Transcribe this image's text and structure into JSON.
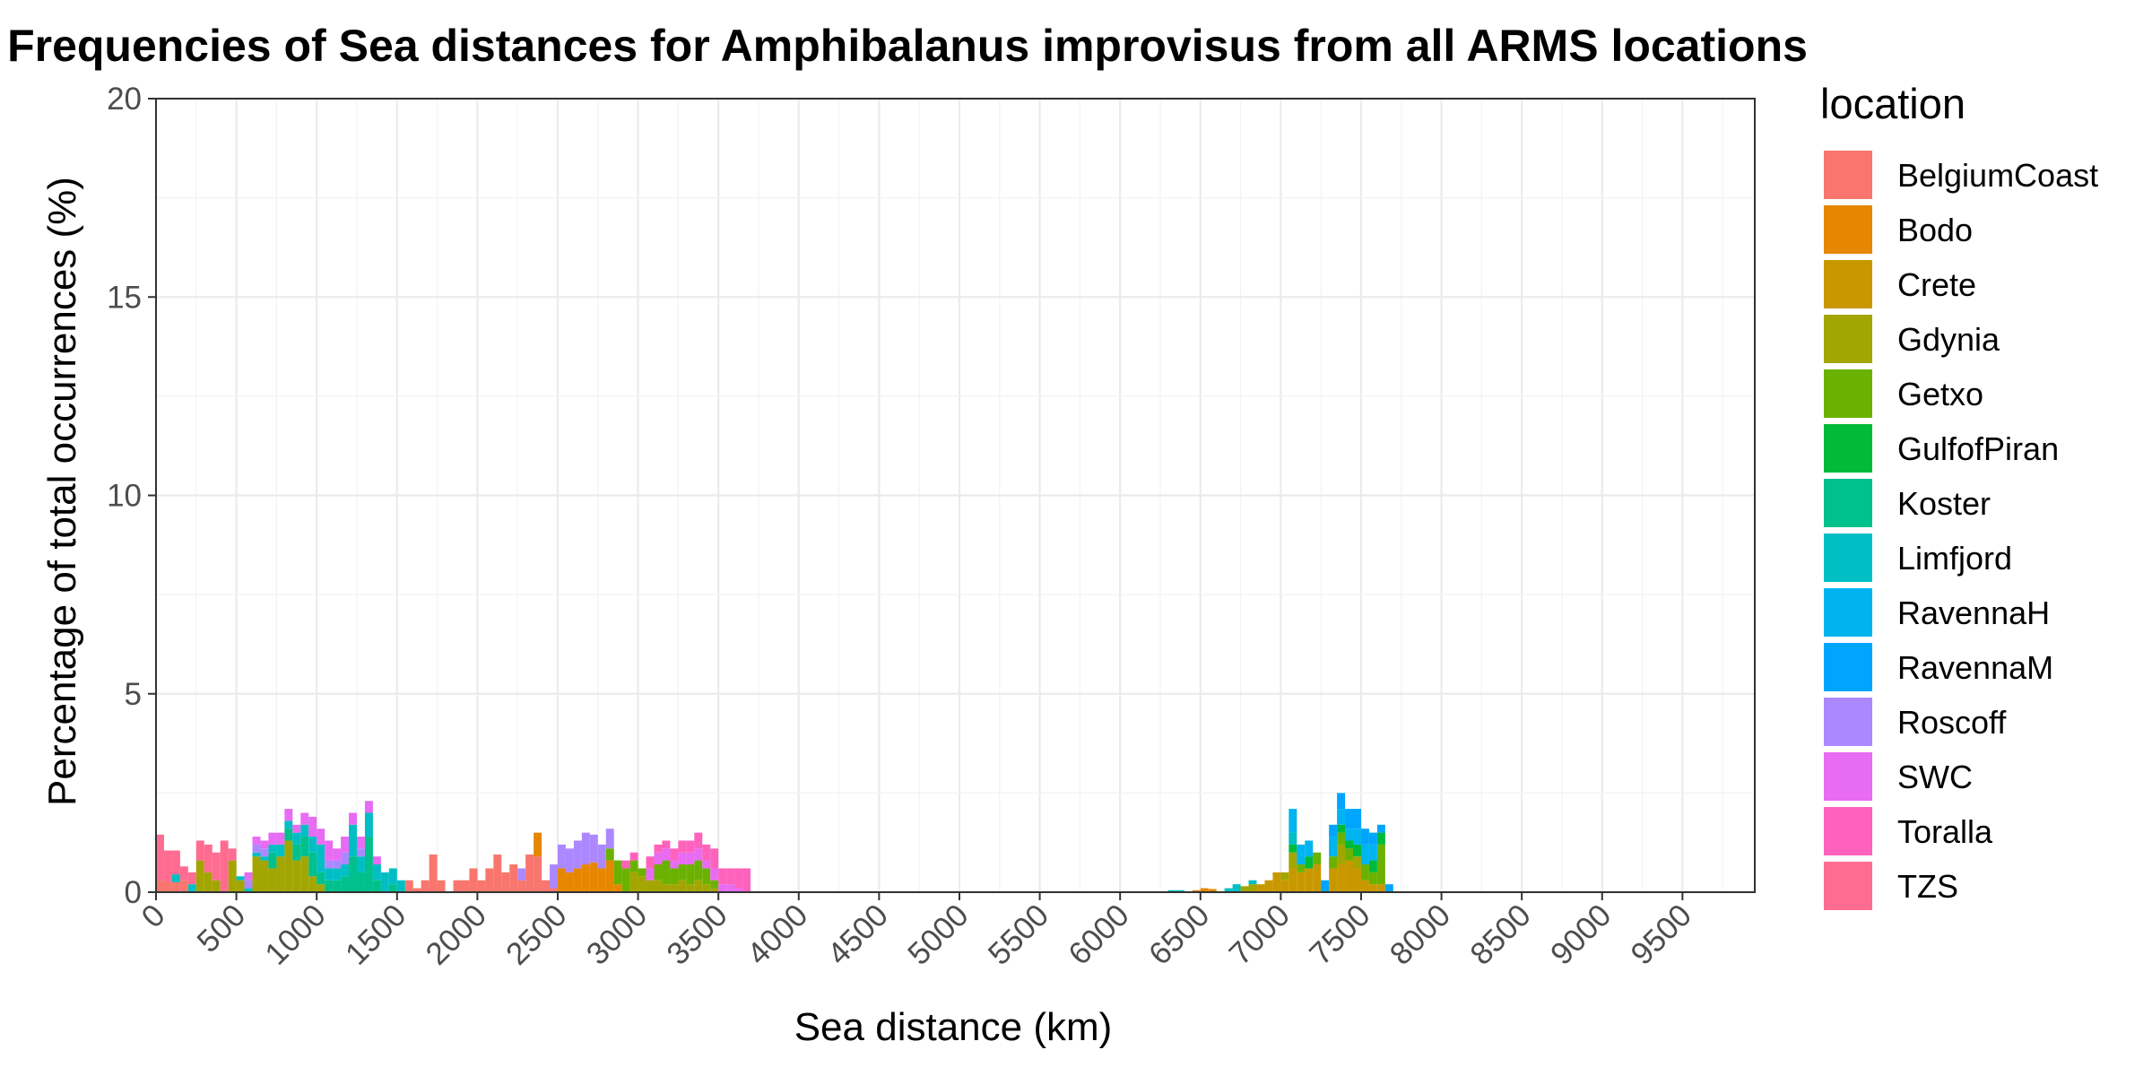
{
  "chart_data": {
    "type": "bar",
    "stacked": true,
    "title": "Frequencies of Sea distances for Amphibalanus improvisus from all ARMS locations",
    "xlabel": "Sea distance (km)",
    "ylabel": "Percentage of total occurrences (%)",
    "xlim": [
      0,
      9950
    ],
    "ylim": [
      0,
      20
    ],
    "bin_width": 50,
    "x_ticks": [
      0,
      500,
      1000,
      1500,
      2000,
      2500,
      3000,
      3500,
      4000,
      4500,
      5000,
      5500,
      6000,
      6500,
      7000,
      7500,
      8000,
      8500,
      9000,
      9500
    ],
    "y_ticks": [
      0,
      5,
      10,
      15,
      20
    ],
    "grid": true,
    "legend": {
      "title": "location",
      "position": "right"
    },
    "series": [
      {
        "name": "BelgiumCoast",
        "color": "#F8766D",
        "values": [
          [
            25,
            0.3
          ],
          [
            75,
            0.25
          ],
          [
            125,
            0.25
          ],
          [
            175,
            0.3
          ],
          [
            1575,
            0.3
          ],
          [
            1625,
            0.1
          ],
          [
            1675,
            0.3
          ],
          [
            1725,
            0.95
          ],
          [
            1775,
            0.3
          ],
          [
            1875,
            0.3
          ],
          [
            1925,
            0.3
          ],
          [
            1975,
            0.6
          ],
          [
            2025,
            0.3
          ],
          [
            2075,
            0.6
          ],
          [
            2125,
            0.95
          ],
          [
            2175,
            0.5
          ],
          [
            2225,
            0.7
          ],
          [
            2275,
            0.3
          ],
          [
            2325,
            0.95
          ],
          [
            2375,
            0.9
          ],
          [
            2425,
            0.3
          ],
          [
            2475,
            0.1
          ]
        ]
      },
      {
        "name": "Bodo",
        "color": "#E58700",
        "values": [
          [
            2375,
            0.6
          ],
          [
            2525,
            0.6
          ],
          [
            2575,
            0.5
          ],
          [
            2625,
            0.6
          ],
          [
            2675,
            0.7
          ],
          [
            2725,
            0.75
          ],
          [
            2775,
            0.6
          ],
          [
            2825,
            0.8
          ],
          [
            2875,
            0.2
          ],
          [
            6475,
            0.05
          ],
          [
            6525,
            0.1
          ],
          [
            6575,
            0.08
          ]
        ]
      },
      {
        "name": "Crete",
        "color": "#C99800",
        "values": [
          [
            6875,
            0.2
          ],
          [
            6925,
            0.3
          ],
          [
            6975,
            0.5
          ],
          [
            7025,
            0.3
          ],
          [
            7075,
            0.6
          ],
          [
            7125,
            0.5
          ],
          [
            7175,
            0.6
          ],
          [
            7225,
            0.7
          ],
          [
            7325,
            0.6
          ],
          [
            7375,
            0.7
          ],
          [
            7425,
            0.8
          ],
          [
            7475,
            0.6
          ],
          [
            7525,
            0.3
          ],
          [
            7575,
            0.2
          ],
          [
            7625,
            0.2
          ]
        ]
      },
      {
        "name": "Gdynia",
        "color": "#A3A500",
        "values": [
          [
            275,
            0.8
          ],
          [
            325,
            0.5
          ],
          [
            375,
            0.3
          ],
          [
            475,
            0.8
          ],
          [
            525,
            0.3
          ],
          [
            625,
            0.9
          ],
          [
            675,
            0.8
          ],
          [
            725,
            0.6
          ],
          [
            775,
            0.9
          ],
          [
            825,
            1.3
          ],
          [
            875,
            0.8
          ],
          [
            925,
            0.9
          ],
          [
            975,
            0.4
          ],
          [
            1025,
            0.2
          ],
          [
            2975,
            0.5
          ],
          [
            3025,
            0.4
          ],
          [
            3075,
            0.3
          ],
          [
            3125,
            0.3
          ],
          [
            3175,
            0.2
          ],
          [
            3225,
            0.2
          ],
          [
            3275,
            0.3
          ],
          [
            3325,
            0.2
          ],
          [
            3375,
            0.3
          ],
          [
            3425,
            0.2
          ],
          [
            3475,
            0.1
          ],
          [
            6775,
            0.15
          ],
          [
            6825,
            0.2
          ],
          [
            7025,
            0.2
          ],
          [
            7075,
            0.4
          ],
          [
            7375,
            0.5
          ],
          [
            7475,
            0.3
          ]
        ]
      },
      {
        "name": "Getxo",
        "color": "#6BB100",
        "values": [
          [
            2825,
            0.3
          ],
          [
            2875,
            0.6
          ],
          [
            2925,
            0.6
          ],
          [
            2975,
            0.3
          ],
          [
            3025,
            0.2
          ],
          [
            3125,
            0.4
          ],
          [
            3175,
            0.6
          ],
          [
            3225,
            0.4
          ],
          [
            3275,
            0.4
          ],
          [
            3325,
            0.5
          ],
          [
            3375,
            0.5
          ],
          [
            3425,
            0.4
          ],
          [
            3475,
            0.2
          ],
          [
            7125,
            0.2
          ],
          [
            7225,
            0.3
          ],
          [
            7325,
            0.3
          ],
          [
            7375,
            0.3
          ],
          [
            7425,
            0.3
          ],
          [
            7525,
            0.4
          ],
          [
            7575,
            0.3
          ],
          [
            7625,
            1.0
          ]
        ]
      },
      {
        "name": "GulfofPiran",
        "color": "#00BA38",
        "values": [
          [
            7075,
            0.2
          ],
          [
            7175,
            0.3
          ],
          [
            7375,
            0.2
          ],
          [
            7425,
            0.2
          ],
          [
            7475,
            0.3
          ],
          [
            7575,
            0.3
          ],
          [
            7625,
            0.3
          ]
        ]
      },
      {
        "name": "Koster",
        "color": "#00C08B",
        "values": [
          [
            725,
            0.4
          ],
          [
            825,
            0.3
          ],
          [
            875,
            0.4
          ],
          [
            925,
            0.5
          ],
          [
            975,
            0.6
          ],
          [
            1025,
            0.3
          ],
          [
            1075,
            0.3
          ],
          [
            1125,
            0.3
          ],
          [
            1175,
            0.4
          ],
          [
            1225,
            0.9
          ],
          [
            1275,
            0.5
          ],
          [
            1325,
            1.4
          ],
          [
            1375,
            0.3
          ],
          [
            1475,
            0.2
          ]
        ]
      },
      {
        "name": "Limfjord",
        "color": "#00BFC4",
        "values": [
          [
            125,
            0.2
          ],
          [
            225,
            0.2
          ],
          [
            525,
            0.1
          ],
          [
            575,
            0.1
          ],
          [
            625,
            0.1
          ],
          [
            675,
            0.1
          ],
          [
            725,
            0.2
          ],
          [
            775,
            0.3
          ],
          [
            825,
            0.2
          ],
          [
            875,
            0.3
          ],
          [
            925,
            0.3
          ],
          [
            975,
            0.4
          ],
          [
            1025,
            0.7
          ],
          [
            1075,
            0.3
          ],
          [
            1125,
            0.3
          ],
          [
            1175,
            0.3
          ],
          [
            1225,
            0.8
          ],
          [
            1275,
            0.4
          ],
          [
            1325,
            0.6
          ],
          [
            1375,
            0.4
          ],
          [
            1425,
            0.5
          ],
          [
            1475,
            0.4
          ],
          [
            1525,
            0.3
          ],
          [
            6325,
            0.05
          ],
          [
            6375,
            0.05
          ],
          [
            6675,
            0.1
          ],
          [
            6725,
            0.2
          ],
          [
            6825,
            0.1
          ],
          [
            7075,
            0.3
          ]
        ]
      },
      {
        "name": "RavennaH",
        "color": "#00B4EF",
        "values": [
          [
            7075,
            0.6
          ],
          [
            7125,
            0.5
          ],
          [
            7175,
            0.4
          ],
          [
            7325,
            0.5
          ],
          [
            7375,
            0.4
          ],
          [
            7425,
            0.3
          ],
          [
            7475,
            0.4
          ],
          [
            7525,
            0.5
          ],
          [
            7575,
            0.4
          ]
        ]
      },
      {
        "name": "RavennaM",
        "color": "#00A5FF",
        "values": [
          [
            7275,
            0.3
          ],
          [
            7325,
            0.3
          ],
          [
            7375,
            0.4
          ],
          [
            7425,
            0.5
          ],
          [
            7475,
            0.5
          ],
          [
            7525,
            0.4
          ],
          [
            7575,
            0.3
          ],
          [
            7625,
            0.2
          ],
          [
            7675,
            0.2
          ]
        ]
      },
      {
        "name": "Roscoff",
        "color": "#AC88FF",
        "values": [
          [
            575,
            0.2
          ],
          [
            625,
            0.2
          ],
          [
            675,
            0.2
          ],
          [
            1075,
            0.2
          ],
          [
            1125,
            0.2
          ],
          [
            1175,
            0.3
          ],
          [
            1275,
            0.2
          ],
          [
            2275,
            0.3
          ],
          [
            2475,
            0.6
          ],
          [
            2525,
            0.6
          ],
          [
            2575,
            0.6
          ],
          [
            2625,
            0.7
          ],
          [
            2675,
            0.8
          ],
          [
            2725,
            0.7
          ],
          [
            2775,
            0.6
          ],
          [
            2825,
            0.5
          ]
        ]
      },
      {
        "name": "SWC",
        "color": "#E76BF3",
        "values": [
          [
            575,
            0.2
          ],
          [
            625,
            0.2
          ],
          [
            675,
            0.2
          ],
          [
            725,
            0.3
          ],
          [
            775,
            0.3
          ],
          [
            825,
            0.3
          ],
          [
            875,
            0.2
          ],
          [
            925,
            0.3
          ],
          [
            975,
            0.5
          ],
          [
            1025,
            0.4
          ],
          [
            1075,
            0.5
          ],
          [
            1125,
            0.3
          ],
          [
            1175,
            0.4
          ],
          [
            1225,
            0.3
          ],
          [
            1275,
            0.3
          ],
          [
            1325,
            0.3
          ],
          [
            1375,
            0.2
          ],
          [
            3075,
            0.3
          ],
          [
            3125,
            0.3
          ],
          [
            3175,
            0.3
          ],
          [
            3225,
            0.2
          ],
          [
            3275,
            0.3
          ],
          [
            3325,
            0.3
          ],
          [
            3375,
            0.3
          ],
          [
            3425,
            0.2
          ],
          [
            3475,
            0.3
          ],
          [
            3525,
            0.2
          ],
          [
            3575,
            0.2
          ],
          [
            3625,
            0.1
          ]
        ]
      },
      {
        "name": "Toralla",
        "color": "#FF62BC",
        "values": [
          [
            2925,
            0.2
          ],
          [
            2975,
            0.2
          ],
          [
            3075,
            0.3
          ],
          [
            3125,
            0.2
          ],
          [
            3175,
            0.2
          ],
          [
            3225,
            0.3
          ],
          [
            3275,
            0.3
          ],
          [
            3325,
            0.3
          ],
          [
            3375,
            0.4
          ],
          [
            3425,
            0.4
          ],
          [
            3475,
            0.5
          ],
          [
            3525,
            0.4
          ],
          [
            3575,
            0.4
          ],
          [
            3625,
            0.5
          ],
          [
            3675,
            0.6
          ]
        ]
      },
      {
        "name": "TZS",
        "color": "#FF6C91",
        "values": [
          [
            25,
            1.15
          ],
          [
            75,
            0.8
          ],
          [
            125,
            0.6
          ],
          [
            175,
            0.35
          ],
          [
            225,
            0.3
          ],
          [
            275,
            0.5
          ],
          [
            325,
            0.7
          ],
          [
            375,
            0.7
          ],
          [
            425,
            1.3
          ],
          [
            475,
            0.3
          ]
        ]
      }
    ]
  }
}
